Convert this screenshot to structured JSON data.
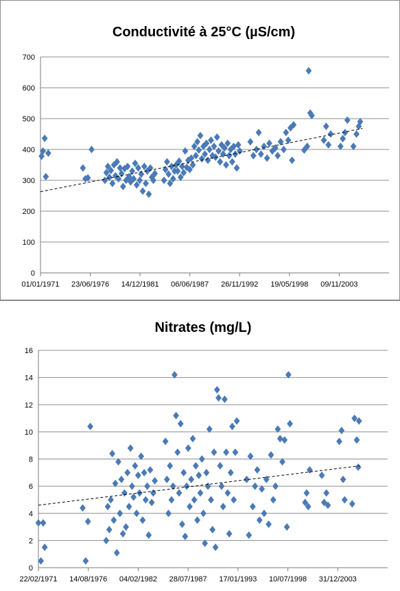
{
  "chart_data": [
    {
      "type": "scatter",
      "title": "Conductivité à 25°C (µS/cm)",
      "xlabel": "",
      "ylabel": "",
      "x_tick_labels": [
        "01/01/1971",
        "23/06/1976",
        "14/12/1981",
        "06/06/1987",
        "26/11/1992",
        "19/05/1998",
        "09/11/2003"
      ],
      "ylim": [
        0,
        700
      ],
      "y_ticks": [
        0,
        100,
        200,
        300,
        400,
        500,
        600,
        700
      ],
      "grid": true,
      "trendline": {
        "style": "dashed",
        "start": [
          "1971-01-01",
          263
        ],
        "end": [
          "2006-06-01",
          468
        ]
      },
      "marker_color": "#4a7ab7",
      "points": [
        [
          "1971-02-15",
          378
        ],
        [
          "1971-04-10",
          395
        ],
        [
          "1971-06-20",
          436
        ],
        [
          "1971-08-05",
          312
        ],
        [
          "1971-11-10",
          388
        ],
        [
          "1975-09-01",
          340
        ],
        [
          "1975-12-10",
          305
        ],
        [
          "1976-03-20",
          308
        ],
        [
          "1976-08-15",
          400
        ],
        [
          "1978-02-01",
          300
        ],
        [
          "1978-04-01",
          325
        ],
        [
          "1978-06-01",
          345
        ],
        [
          "1978-08-01",
          310
        ],
        [
          "1978-10-01",
          332
        ],
        [
          "1978-12-01",
          290
        ],
        [
          "1979-02-01",
          350
        ],
        [
          "1979-04-01",
          315
        ],
        [
          "1979-06-01",
          360
        ],
        [
          "1979-08-01",
          305
        ],
        [
          "1979-10-01",
          340
        ],
        [
          "1979-12-01",
          322
        ],
        [
          "1980-02-01",
          280
        ],
        [
          "1980-04-01",
          338
        ],
        [
          "1980-06-01",
          300
        ],
        [
          "1980-08-01",
          345
        ],
        [
          "1980-10-01",
          312
        ],
        [
          "1980-12-01",
          295
        ],
        [
          "1981-02-01",
          330
        ],
        [
          "1981-04-01",
          305
        ],
        [
          "1981-06-01",
          355
        ],
        [
          "1981-08-01",
          285
        ],
        [
          "1981-10-01",
          340
        ],
        [
          "1981-12-01",
          300
        ],
        [
          "1982-02-01",
          320
        ],
        [
          "1982-04-01",
          265
        ],
        [
          "1982-06-01",
          345
        ],
        [
          "1982-08-01",
          290
        ],
        [
          "1982-10-01",
          330
        ],
        [
          "1982-12-01",
          255
        ],
        [
          "1983-02-01",
          340
        ],
        [
          "1983-04-01",
          310
        ],
        [
          "1983-06-01",
          300
        ],
        [
          "1983-08-01",
          322
        ],
        [
          "1984-08-01",
          300
        ],
        [
          "1984-10-01",
          335
        ],
        [
          "1984-12-01",
          360
        ],
        [
          "1985-02-01",
          320
        ],
        [
          "1985-04-01",
          290
        ],
        [
          "1985-06-01",
          345
        ],
        [
          "1985-08-01",
          305
        ],
        [
          "1985-10-01",
          330
        ],
        [
          "1985-12-01",
          350
        ],
        [
          "1986-02-01",
          330
        ],
        [
          "1986-04-01",
          362
        ],
        [
          "1986-06-01",
          310
        ],
        [
          "1986-08-01",
          345
        ],
        [
          "1986-10-01",
          325
        ],
        [
          "1986-12-01",
          395
        ],
        [
          "1987-02-01",
          342
        ],
        [
          "1987-04-01",
          365
        ],
        [
          "1987-06-01",
          335
        ],
        [
          "1987-08-01",
          372
        ],
        [
          "1987-10-01",
          350
        ],
        [
          "1987-12-01",
          410
        ],
        [
          "1988-02-01",
          380
        ],
        [
          "1988-04-01",
          425
        ],
        [
          "1988-06-01",
          398
        ],
        [
          "1988-08-01",
          445
        ],
        [
          "1988-10-01",
          370
        ],
        [
          "1988-12-01",
          410
        ],
        [
          "1989-02-01",
          385
        ],
        [
          "1989-04-01",
          420
        ],
        [
          "1989-06-01",
          365
        ],
        [
          "1989-08-01",
          400
        ],
        [
          "1989-10-01",
          430
        ],
        [
          "1989-12-01",
          380
        ],
        [
          "1990-02-01",
          410
        ],
        [
          "1990-04-01",
          375
        ],
        [
          "1990-06-01",
          440
        ],
        [
          "1990-08-01",
          395
        ],
        [
          "1990-10-01",
          360
        ],
        [
          "1990-12-01",
          415
        ],
        [
          "1991-02-01",
          385
        ],
        [
          "1991-04-01",
          405
        ],
        [
          "1991-06-01",
          350
        ],
        [
          "1991-08-01",
          420
        ],
        [
          "1991-10-01",
          380
        ],
        [
          "1991-12-01",
          400
        ],
        [
          "1992-02-01",
          360
        ],
        [
          "1992-04-01",
          410
        ],
        [
          "1992-06-01",
          385
        ],
        [
          "1992-08-01",
          340
        ],
        [
          "1992-10-01",
          415
        ],
        [
          "1992-12-01",
          395
        ],
        [
          "1994-02-01",
          425
        ],
        [
          "1994-06-01",
          380
        ],
        [
          "1994-10-01",
          400
        ],
        [
          "1995-01-01",
          455
        ],
        [
          "1995-04-01",
          385
        ],
        [
          "1995-08-01",
          410
        ],
        [
          "1995-12-01",
          372
        ],
        [
          "1996-03-01",
          420
        ],
        [
          "1996-07-01",
          395
        ],
        [
          "1996-11-01",
          405
        ],
        [
          "1997-02-01",
          380
        ],
        [
          "1997-06-01",
          425
        ],
        [
          "1997-10-01",
          400
        ],
        [
          "1998-01-01",
          455
        ],
        [
          "1998-04-01",
          430
        ],
        [
          "1998-07-01",
          470
        ],
        [
          "1998-09-01",
          365
        ],
        [
          "1998-11-01",
          480
        ],
        [
          "2000-01-01",
          398
        ],
        [
          "2000-05-01",
          410
        ],
        [
          "2000-07-01",
          655
        ],
        [
          "2000-09-01",
          518
        ],
        [
          "2000-11-01",
          510
        ],
        [
          "2002-03-01",
          430
        ],
        [
          "2002-06-01",
          475
        ],
        [
          "2002-09-01",
          415
        ],
        [
          "2002-12-01",
          450
        ],
        [
          "2004-01-01",
          410
        ],
        [
          "2004-04-01",
          435
        ],
        [
          "2004-07-01",
          455
        ],
        [
          "2004-10-01",
          495
        ],
        [
          "2005-06-01",
          410
        ],
        [
          "2005-10-01",
          450
        ],
        [
          "2006-01-01",
          475
        ],
        [
          "2006-03-01",
          490
        ]
      ]
    },
    {
      "type": "scatter",
      "title": "Nitrates (mg/L)",
      "xlabel": "",
      "ylabel": "",
      "x_tick_labels": [
        "22/02/1971",
        "14/08/1976",
        "04/02/1982",
        "28/07/1987",
        "17/01/1993",
        "10/07/1998",
        "31/12/2003"
      ],
      "ylim": [
        0,
        16
      ],
      "y_ticks": [
        0,
        2,
        4,
        6,
        8,
        10,
        12,
        14,
        16
      ],
      "grid": true,
      "trendline": {
        "style": "dashed",
        "start": [
          "1971-02-22",
          4.6
        ],
        "end": [
          "2006-06-01",
          7.5
        ]
      },
      "marker_color": "#4a7ab7",
      "points": [
        [
          "1971-02-22",
          3.3
        ],
        [
          "1971-06-01",
          0.5
        ],
        [
          "1971-09-01",
          3.3
        ],
        [
          "1971-11-01",
          1.5
        ],
        [
          "1976-01-01",
          4.4
        ],
        [
          "1976-05-01",
          0.5
        ],
        [
          "1976-08-01",
          3.4
        ],
        [
          "1976-11-01",
          10.4
        ],
        [
          "1978-08-01",
          2.0
        ],
        [
          "1978-10-01",
          4.5
        ],
        [
          "1978-12-01",
          2.8
        ],
        [
          "1979-02-01",
          5.0
        ],
        [
          "1979-04-01",
          8.4
        ],
        [
          "1979-06-01",
          3.5
        ],
        [
          "1979-08-01",
          6.2
        ],
        [
          "1979-10-01",
          1.1
        ],
        [
          "1979-12-01",
          7.8
        ],
        [
          "1980-02-01",
          4.0
        ],
        [
          "1980-04-01",
          6.5
        ],
        [
          "1980-06-01",
          2.5
        ],
        [
          "1980-08-01",
          5.5
        ],
        [
          "1980-10-01",
          3.0
        ],
        [
          "1980-12-01",
          7.0
        ],
        [
          "1981-02-01",
          4.5
        ],
        [
          "1981-04-01",
          8.8
        ],
        [
          "1981-06-01",
          6.0
        ],
        [
          "1981-08-01",
          5.2
        ],
        [
          "1981-10-01",
          7.5
        ],
        [
          "1981-12-01",
          4.0
        ],
        [
          "1982-02-01",
          6.8
        ],
        [
          "1982-04-01",
          5.5
        ],
        [
          "1982-06-01",
          8.2
        ],
        [
          "1982-08-01",
          3.5
        ],
        [
          "1982-10-01",
          7.0
        ],
        [
          "1982-12-01",
          5.0
        ],
        [
          "1983-02-01",
          6.0
        ],
        [
          "1983-04-01",
          2.4
        ],
        [
          "1983-06-01",
          7.2
        ],
        [
          "1983-08-01",
          4.8
        ],
        [
          "1983-10-01",
          5.5
        ],
        [
          "1983-12-01",
          6.4
        ],
        [
          "1985-02-01",
          9.3
        ],
        [
          "1985-04-01",
          6.5
        ],
        [
          "1985-06-01",
          4.0
        ],
        [
          "1985-08-01",
          7.5
        ],
        [
          "1985-10-01",
          5.0
        ],
        [
          "1985-12-01",
          6.0
        ],
        [
          "1986-02-01",
          14.2
        ],
        [
          "1986-04-01",
          11.2
        ],
        [
          "1986-06-01",
          8.5
        ],
        [
          "1986-08-01",
          5.5
        ],
        [
          "1986-10-01",
          10.6
        ],
        [
          "1986-12-01",
          3.2
        ],
        [
          "1987-02-01",
          7.0
        ],
        [
          "1987-04-01",
          2.3
        ],
        [
          "1987-06-01",
          6.0
        ],
        [
          "1987-08-01",
          8.8
        ],
        [
          "1987-10-01",
          4.5
        ],
        [
          "1987-12-01",
          6.5
        ],
        [
          "1988-02-01",
          9.5
        ],
        [
          "1988-04-01",
          5.0
        ],
        [
          "1988-06-01",
          7.5
        ],
        [
          "1988-08-01",
          3.5
        ],
        [
          "1988-10-01",
          6.8
        ],
        [
          "1988-12-01",
          5.5
        ],
        [
          "1989-02-01",
          8.0
        ],
        [
          "1989-04-01",
          4.0
        ],
        [
          "1989-06-01",
          1.8
        ],
        [
          "1989-08-01",
          7.0
        ],
        [
          "1989-10-01",
          6.0
        ],
        [
          "1989-12-01",
          10.2
        ],
        [
          "1990-02-01",
          5.0
        ],
        [
          "1990-04-01",
          2.8
        ],
        [
          "1990-06-01",
          8.5
        ],
        [
          "1990-08-01",
          1.5
        ],
        [
          "1990-10-01",
          13.1
        ],
        [
          "1990-12-01",
          12.5
        ],
        [
          "1991-02-01",
          7.5
        ],
        [
          "1991-04-01",
          6.0
        ],
        [
          "1991-06-01",
          4.5
        ],
        [
          "1991-08-01",
          12.4
        ],
        [
          "1991-10-01",
          8.5
        ],
        [
          "1991-12-01",
          5.5
        ],
        [
          "1992-02-01",
          2.5
        ],
        [
          "1992-04-01",
          7.0
        ],
        [
          "1992-06-01",
          10.4
        ],
        [
          "1992-08-01",
          5.0
        ],
        [
          "1992-10-01",
          8.5
        ],
        [
          "1992-12-01",
          10.8
        ],
        [
          "1994-01-01",
          6.5
        ],
        [
          "1994-04-01",
          2.4
        ],
        [
          "1994-06-01",
          8.2
        ],
        [
          "1994-09-01",
          4.5
        ],
        [
          "1994-12-01",
          6.0
        ],
        [
          "1995-03-01",
          7.2
        ],
        [
          "1995-06-01",
          3.5
        ],
        [
          "1995-09-01",
          5.8
        ],
        [
          "1995-12-01",
          4.0
        ],
        [
          "1996-03-01",
          6.5
        ],
        [
          "1996-06-01",
          3.2
        ],
        [
          "1996-09-01",
          8.3
        ],
        [
          "1996-12-01",
          5.0
        ],
        [
          "1997-03-01",
          6.0
        ],
        [
          "1997-06-01",
          10.2
        ],
        [
          "1997-09-01",
          9.5
        ],
        [
          "1997-12-01",
          7.8
        ],
        [
          "1998-03-01",
          9.4
        ],
        [
          "1998-06-01",
          3.0
        ],
        [
          "1998-08-01",
          14.2
        ],
        [
          "1998-10-01",
          10.6
        ],
        [
          "2000-06-01",
          4.8
        ],
        [
          "2000-08-01",
          5.5
        ],
        [
          "2000-10-01",
          4.5
        ],
        [
          "2000-12-01",
          7.2
        ],
        [
          "2002-04-01",
          6.8
        ],
        [
          "2002-07-01",
          4.8
        ],
        [
          "2002-10-01",
          5.5
        ],
        [
          "2002-12-01",
          4.6
        ],
        [
          "2004-03-01",
          9.3
        ],
        [
          "2004-06-01",
          10.1
        ],
        [
          "2004-08-01",
          6.5
        ],
        [
          "2004-10-01",
          5.0
        ],
        [
          "2005-08-01",
          4.7
        ],
        [
          "2005-11-01",
          11.0
        ],
        [
          "2006-02-01",
          9.4
        ],
        [
          "2006-04-01",
          7.4
        ],
        [
          "2006-05-01",
          10.8
        ]
      ]
    }
  ]
}
